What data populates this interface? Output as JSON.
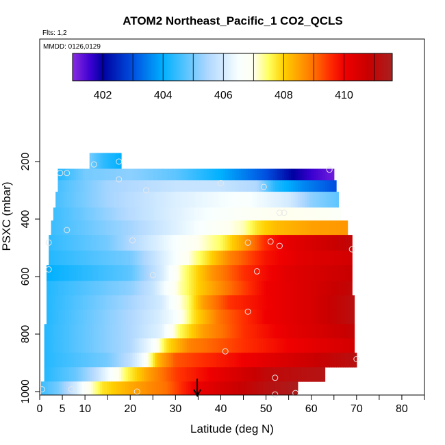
{
  "chart_data": {
    "type": "heatmap",
    "title": "ATOM2 Northeast_Pacific_1 CO2_QCLS",
    "flights_note": "Flts: 1,2",
    "dates_note": "MMDD: 0126,0129",
    "xlabel": "Latitude (deg N)",
    "ylabel": "PSXC (mbar)",
    "xlim": [
      0,
      85
    ],
    "ylim": [
      1000,
      0
    ],
    "x_ticks": [
      0,
      5,
      10,
      20,
      30,
      40,
      50,
      60,
      70,
      80
    ],
    "x_tick_labels": [
      "0",
      "5",
      "10",
      "20",
      "30",
      "40",
      "50",
      "60",
      "70",
      "80"
    ],
    "x_minor_ticks": [
      15,
      25,
      35,
      45,
      55,
      65,
      75,
      85
    ],
    "y_ticks": [
      200,
      400,
      600,
      800,
      1000
    ],
    "y_tick_labels": [
      "200",
      "400",
      "600",
      "800",
      "1000"
    ],
    "colorbar": {
      "range": [
        401,
        411.6
      ],
      "tick_values": [
        402,
        404,
        406,
        408,
        410
      ],
      "tick_labels": [
        "402",
        "404",
        "406",
        "408",
        "410"
      ],
      "divisions": [
        401,
        402,
        403,
        404,
        405,
        406,
        407,
        408,
        409,
        410,
        411,
        411.6
      ],
      "stops": [
        {
          "v": 401.0,
          "color": "#8a2be2"
        },
        {
          "v": 401.6,
          "color": "#3a00d0"
        },
        {
          "v": 402.0,
          "color": "#0000a0"
        },
        {
          "v": 403.0,
          "color": "#0050e0"
        },
        {
          "v": 404.0,
          "color": "#00b0ff"
        },
        {
          "v": 405.5,
          "color": "#b0d8ff"
        },
        {
          "v": 406.5,
          "color": "#f8ffff"
        },
        {
          "v": 407.0,
          "color": "#fffff0"
        },
        {
          "v": 407.5,
          "color": "#ffff60"
        },
        {
          "v": 408.0,
          "color": "#ffd000"
        },
        {
          "v": 408.5,
          "color": "#ffa000"
        },
        {
          "v": 409.0,
          "color": "#ff7000"
        },
        {
          "v": 409.5,
          "color": "#ff3000"
        },
        {
          "v": 410.0,
          "color": "#f00000"
        },
        {
          "v": 410.8,
          "color": "#c80000"
        },
        {
          "v": 411.6,
          "color": "#a82020"
        }
      ]
    },
    "bands": [
      {
        "p_top": 170,
        "p_bot": 225,
        "lat_min": 11,
        "lat_max": 18,
        "knots": [
          [
            11,
            405.0
          ],
          [
            14,
            404.4
          ],
          [
            18,
            404.0
          ]
        ]
      },
      {
        "p_top": 225,
        "p_bot": 265,
        "lat_min": 4,
        "lat_max": 65,
        "knots": [
          [
            4,
            404.3
          ],
          [
            10,
            405.0
          ],
          [
            20,
            405.2
          ],
          [
            30,
            404.8
          ],
          [
            40,
            404.0
          ],
          [
            50,
            403.0
          ],
          [
            56,
            402.0
          ],
          [
            60,
            401.6
          ],
          [
            65,
            401.2
          ]
        ]
      },
      {
        "p_top": 265,
        "p_bot": 305,
        "lat_min": 4,
        "lat_max": 65.5,
        "knots": [
          [
            4,
            404.6
          ],
          [
            15,
            405.4
          ],
          [
            30,
            405.8
          ],
          [
            40,
            405.8
          ],
          [
            48,
            405.5
          ],
          [
            52,
            404.3
          ],
          [
            58,
            403.6
          ],
          [
            65,
            403.0
          ]
        ]
      },
      {
        "p_top": 305,
        "p_bot": 360,
        "lat_min": 3.5,
        "lat_max": 66,
        "knots": [
          [
            3.5,
            404.6
          ],
          [
            15,
            405.4
          ],
          [
            30,
            406.1
          ],
          [
            45,
            406.6
          ],
          [
            55,
            406.0
          ],
          [
            60,
            405.2
          ],
          [
            66,
            404.8
          ]
        ]
      },
      {
        "p_top": 360,
        "p_bot": 405,
        "lat_min": 3,
        "lat_max": 66.5,
        "knots": [
          [
            3,
            404.5
          ],
          [
            20,
            405.6
          ],
          [
            35,
            406.4
          ],
          [
            45,
            406.8
          ],
          [
            55,
            407.0
          ],
          [
            62,
            406.9
          ],
          [
            66.5,
            406.7
          ]
        ]
      },
      {
        "p_top": 405,
        "p_bot": 455,
        "lat_min": 2.5,
        "lat_max": 68,
        "knots": [
          [
            2.5,
            404.5
          ],
          [
            20,
            405.4
          ],
          [
            35,
            406.5
          ],
          [
            45,
            407.2
          ],
          [
            48,
            407.8
          ],
          [
            52,
            408.2
          ],
          [
            60,
            408.5
          ],
          [
            68,
            408.6
          ]
        ]
      },
      {
        "p_top": 455,
        "p_bot": 510,
        "lat_min": 2,
        "lat_max": 69,
        "knots": [
          [
            2,
            404.4
          ],
          [
            15,
            405.0
          ],
          [
            30,
            406.5
          ],
          [
            40,
            407.5
          ],
          [
            45,
            408.5
          ],
          [
            50,
            409.6
          ],
          [
            55,
            410.2
          ],
          [
            62,
            410.6
          ],
          [
            69,
            411.0
          ]
        ]
      },
      {
        "p_top": 510,
        "p_bot": 560,
        "lat_min": 2,
        "lat_max": 69,
        "knots": [
          [
            2,
            404.3
          ],
          [
            20,
            405.0
          ],
          [
            30,
            406.5
          ],
          [
            37,
            407.8
          ],
          [
            42,
            408.8
          ],
          [
            50,
            409.8
          ],
          [
            58,
            410.3
          ],
          [
            69,
            410.6
          ]
        ]
      },
      {
        "p_top": 560,
        "p_bot": 615,
        "lat_min": 1.5,
        "lat_max": 69,
        "knots": [
          [
            1.5,
            404.0
          ],
          [
            20,
            404.8
          ],
          [
            27,
            406.0
          ],
          [
            32,
            407.4
          ],
          [
            38,
            408.6
          ],
          [
            45,
            409.5
          ],
          [
            55,
            410.3
          ],
          [
            69,
            410.8
          ]
        ]
      },
      {
        "p_top": 615,
        "p_bot": 665,
        "lat_min": 1.5,
        "lat_max": 69,
        "knots": [
          [
            1.5,
            404.3
          ],
          [
            20,
            405.2
          ],
          [
            25,
            405.8
          ],
          [
            30,
            407.0
          ],
          [
            35,
            408.0
          ],
          [
            42,
            409.0
          ],
          [
            50,
            410.0
          ],
          [
            60,
            410.5
          ],
          [
            69,
            411.0
          ]
        ]
      },
      {
        "p_top": 665,
        "p_bot": 715,
        "lat_min": 1.5,
        "lat_max": 69.5,
        "knots": [
          [
            1.5,
            404.3
          ],
          [
            20,
            405.4
          ],
          [
            27,
            406.0
          ],
          [
            33,
            407.5
          ],
          [
            36,
            408.5
          ],
          [
            42,
            409.5
          ],
          [
            52,
            410.1
          ],
          [
            60,
            410.5
          ],
          [
            69.5,
            411.2
          ]
        ]
      },
      {
        "p_top": 715,
        "p_bot": 765,
        "lat_min": 1.5,
        "lat_max": 69.5,
        "knots": [
          [
            1.5,
            404.3
          ],
          [
            20,
            405.5
          ],
          [
            26,
            406.0
          ],
          [
            30,
            406.5
          ],
          [
            34,
            407.8
          ],
          [
            40,
            409.0
          ],
          [
            50,
            410.0
          ],
          [
            60,
            410.5
          ],
          [
            69.5,
            411.2
          ]
        ]
      },
      {
        "p_top": 765,
        "p_bot": 815,
        "lat_min": 1,
        "lat_max": 69.5,
        "knots": [
          [
            1,
            404.3
          ],
          [
            20,
            405.5
          ],
          [
            27,
            406.2
          ],
          [
            31,
            407.5
          ],
          [
            36,
            408.5
          ],
          [
            45,
            409.5
          ],
          [
            55,
            410.2
          ],
          [
            69.5,
            410.9
          ]
        ]
      },
      {
        "p_top": 815,
        "p_bot": 865,
        "lat_min": 1,
        "lat_max": 69.5,
        "knots": [
          [
            1,
            404.3
          ],
          [
            20,
            405.5
          ],
          [
            25,
            406.5
          ],
          [
            28,
            407.8
          ],
          [
            33,
            408.8
          ],
          [
            45,
            409.5
          ],
          [
            55,
            410.0
          ],
          [
            69.5,
            410.6
          ]
        ]
      },
      {
        "p_top": 865,
        "p_bot": 915,
        "lat_min": 1,
        "lat_max": 70,
        "knots": [
          [
            1,
            404.3
          ],
          [
            15,
            405.0
          ],
          [
            20,
            405.7
          ],
          [
            23,
            406.5
          ],
          [
            26,
            408.2
          ],
          [
            30,
            409.2
          ],
          [
            45,
            410.0
          ],
          [
            55,
            410.5
          ],
          [
            70,
            411.2
          ]
        ]
      },
      {
        "p_top": 915,
        "p_bot": 965,
        "lat_min": 1,
        "lat_max": 63,
        "knots": [
          [
            1,
            404.3
          ],
          [
            8,
            404.9
          ],
          [
            12,
            405.6
          ],
          [
            16,
            406.6
          ],
          [
            19,
            407.5
          ],
          [
            24,
            408.5
          ],
          [
            30,
            409.4
          ],
          [
            40,
            410.2
          ],
          [
            50,
            411.0
          ],
          [
            63,
            411.3
          ]
        ]
      },
      {
        "p_top": 965,
        "p_bot": 1010,
        "lat_min": 0.3,
        "lat_max": 57,
        "knots": [
          [
            0.3,
            404.5
          ],
          [
            4,
            405.0
          ],
          [
            8,
            406.0
          ],
          [
            11,
            407.0
          ],
          [
            14,
            407.8
          ],
          [
            20,
            408.4
          ],
          [
            28,
            409.0
          ],
          [
            34,
            410.0
          ],
          [
            40,
            410.5
          ],
          [
            50,
            411.2
          ],
          [
            57,
            411.5
          ]
        ]
      }
    ],
    "sample_points": [
      {
        "lat": 12,
        "p": 210
      },
      {
        "lat": 17.5,
        "p": 200
      },
      {
        "lat": 4.5,
        "p": 240
      },
      {
        "lat": 6,
        "p": 240
      },
      {
        "lat": 17.5,
        "p": 262
      },
      {
        "lat": 64,
        "p": 228
      },
      {
        "lat": 40,
        "p": 275
      },
      {
        "lat": 49.5,
        "p": 288
      },
      {
        "lat": 23.5,
        "p": 300
      },
      {
        "lat": 53,
        "p": 378
      },
      {
        "lat": 54,
        "p": 378
      },
      {
        "lat": 6,
        "p": 438
      },
      {
        "lat": 20.5,
        "p": 474
      },
      {
        "lat": 2,
        "p": 482
      },
      {
        "lat": 46,
        "p": 482
      },
      {
        "lat": 51,
        "p": 478
      },
      {
        "lat": 53,
        "p": 493
      },
      {
        "lat": 69,
        "p": 505
      },
      {
        "lat": 2,
        "p": 575
      },
      {
        "lat": 25,
        "p": 595
      },
      {
        "lat": 48,
        "p": 582
      },
      {
        "lat": 46,
        "p": 722
      },
      {
        "lat": 41,
        "p": 860
      },
      {
        "lat": 70,
        "p": 887
      },
      {
        "lat": 52,
        "p": 952
      },
      {
        "lat": 0.5,
        "p": 992
      },
      {
        "lat": 7,
        "p": 992
      },
      {
        "lat": 21.5,
        "p": 1000
      },
      {
        "lat": 52,
        "p": 1010
      },
      {
        "lat": 56.5,
        "p": 1005
      }
    ],
    "arrow": {
      "lat": 34.8,
      "p_from": 955,
      "p_to": 1012
    }
  }
}
